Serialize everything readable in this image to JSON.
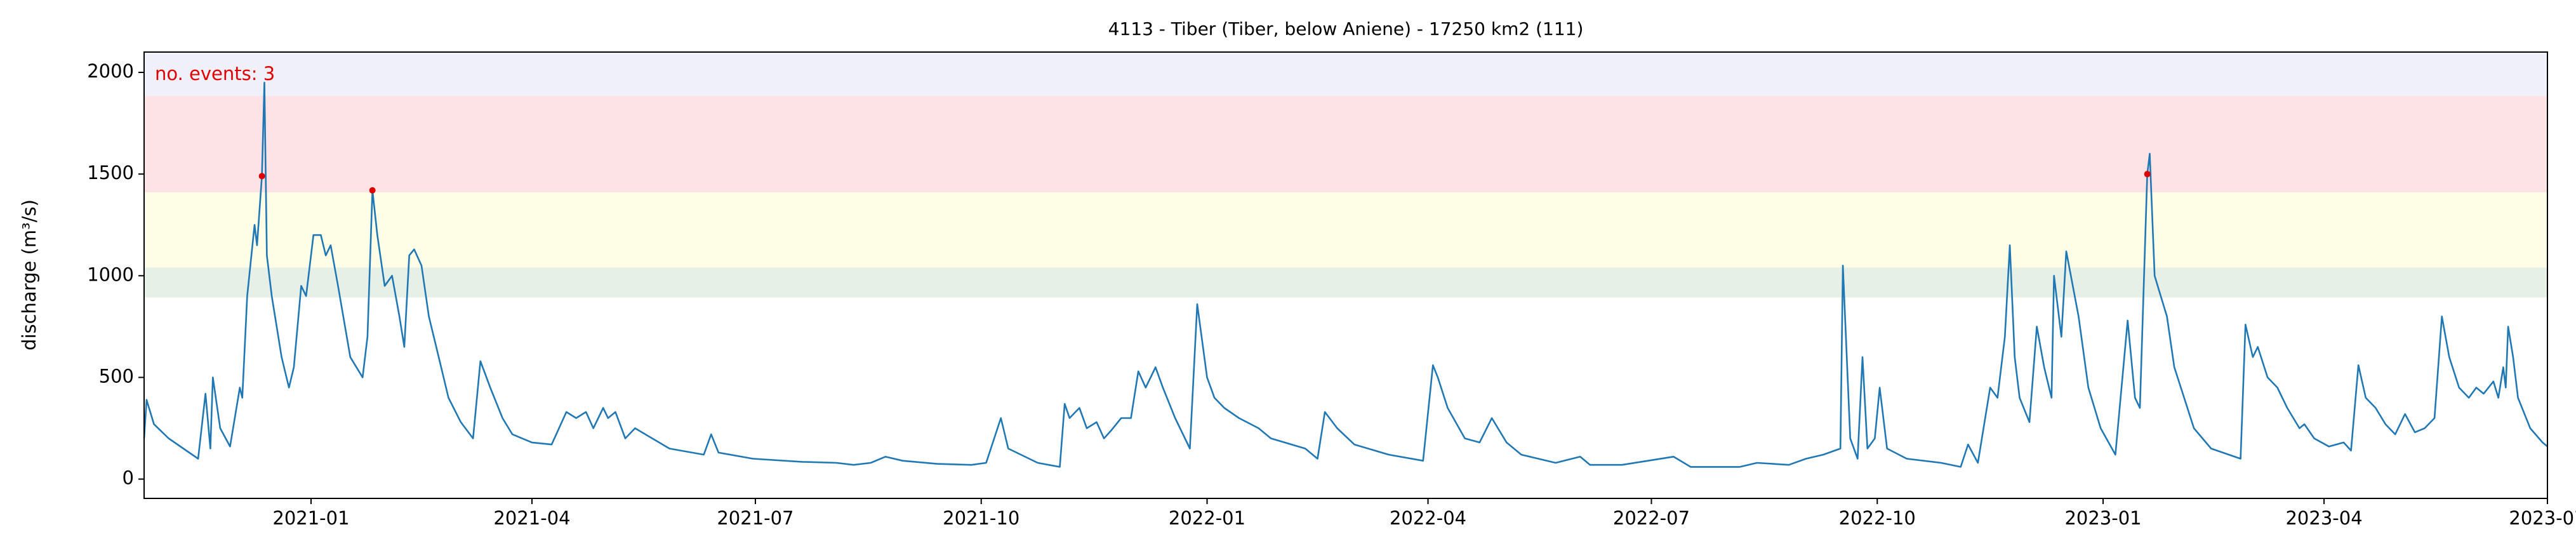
{
  "chart_data": {
    "type": "line",
    "title": "4113 - Tiber (Tiber, below Aniene) - 17250 km2 (111)",
    "ylabel": "discharge (m³/s)",
    "annotation": "no. events: 3",
    "annotation_color": "#e00000",
    "xlim": [
      "2020-10-25",
      "2023-07-01"
    ],
    "xticks": [
      {
        "value": "2021-01-01",
        "label": "2021-01"
      },
      {
        "value": "2021-04-01",
        "label": "2021-04"
      },
      {
        "value": "2021-07-01",
        "label": "2021-07"
      },
      {
        "value": "2021-10-01",
        "label": "2021-10"
      },
      {
        "value": "2022-01-01",
        "label": "2022-01"
      },
      {
        "value": "2022-04-01",
        "label": "2022-04"
      },
      {
        "value": "2022-07-01",
        "label": "2022-07"
      },
      {
        "value": "2022-10-01",
        "label": "2022-10"
      },
      {
        "value": "2023-01-01",
        "label": "2023-01"
      },
      {
        "value": "2023-04-01",
        "label": "2023-04"
      },
      {
        "value": "2023-07-01",
        "label": "2023-07"
      }
    ],
    "ylim": [
      -95,
      2100
    ],
    "yticks": [
      0,
      500,
      1000,
      1500,
      2000
    ],
    "bands": [
      {
        "from": 893,
        "to": 1041,
        "color": "#e6f0e6"
      },
      {
        "from": 1041,
        "to": 1410,
        "color": "#fefee6"
      },
      {
        "from": 1410,
        "to": 1885,
        "color": "#fde3e5"
      },
      {
        "from": 1885,
        "to": 2100,
        "color": "#f0f0fa"
      }
    ],
    "series": [
      {
        "color": "#1f77b4",
        "x": [
          "2020-10-25",
          "2020-10-26",
          "2020-10-29",
          "2020-11-04",
          "2020-11-16",
          "2020-11-19",
          "2020-11-21",
          "2020-11-22",
          "2020-11-25",
          "2020-11-29",
          "2020-12-03",
          "2020-12-04",
          "2020-12-06",
          "2020-12-09",
          "2020-12-10",
          "2020-12-12",
          "2020-12-13",
          "2020-12-14",
          "2020-12-16",
          "2020-12-20",
          "2020-12-23",
          "2020-12-25",
          "2020-12-28",
          "2020-12-30",
          "2021-01-02",
          "2021-01-05",
          "2021-01-07",
          "2021-01-09",
          "2021-01-12",
          "2021-01-17",
          "2021-01-22",
          "2021-01-24",
          "2021-01-26",
          "2021-01-28",
          "2021-01-31",
          "2021-02-03",
          "2021-02-06",
          "2021-02-08",
          "2021-02-10",
          "2021-02-12",
          "2021-02-15",
          "2021-02-18",
          "2021-02-22",
          "2021-02-26",
          "2021-03-03",
          "2021-03-08",
          "2021-03-11",
          "2021-03-15",
          "2021-03-20",
          "2021-03-24",
          "2021-04-01",
          "2021-04-09",
          "2021-04-15",
          "2021-04-19",
          "2021-04-23",
          "2021-04-26",
          "2021-04-30",
          "2021-05-02",
          "2021-05-05",
          "2021-05-09",
          "2021-05-13",
          "2021-05-20",
          "2021-05-27",
          "2021-06-10",
          "2021-06-13",
          "2021-06-16",
          "2021-06-30",
          "2021-07-20",
          "2021-08-03",
          "2021-08-10",
          "2021-08-17",
          "2021-08-23",
          "2021-08-30",
          "2021-09-13",
          "2021-09-27",
          "2021-10-03",
          "2021-10-09",
          "2021-10-12",
          "2021-10-24",
          "2021-11-02",
          "2021-11-04",
          "2021-11-06",
          "2021-11-10",
          "2021-11-13",
          "2021-11-17",
          "2021-11-20",
          "2021-11-23",
          "2021-11-27",
          "2021-12-01",
          "2021-12-04",
          "2021-12-07",
          "2021-12-11",
          "2021-12-14",
          "2021-12-19",
          "2021-12-23",
          "2021-12-25",
          "2021-12-28",
          "2022-01-01",
          "2022-01-04",
          "2022-01-08",
          "2022-01-14",
          "2022-01-22",
          "2022-01-27",
          "2022-02-10",
          "2022-02-15",
          "2022-02-18",
          "2022-02-23",
          "2022-03-02",
          "2022-03-16",
          "2022-03-30",
          "2022-04-03",
          "2022-04-05",
          "2022-04-09",
          "2022-04-16",
          "2022-04-22",
          "2022-04-27",
          "2022-05-03",
          "2022-05-09",
          "2022-05-23",
          "2022-06-02",
          "2022-06-06",
          "2022-06-19",
          "2022-07-10",
          "2022-07-17",
          "2022-08-06",
          "2022-08-13",
          "2022-08-26",
          "2022-09-02",
          "2022-09-09",
          "2022-09-16",
          "2022-09-17",
          "2022-09-20",
          "2022-09-23",
          "2022-09-25",
          "2022-09-27",
          "2022-09-30",
          "2022-10-02",
          "2022-10-05",
          "2022-10-13",
          "2022-10-27",
          "2022-11-04",
          "2022-11-07",
          "2022-11-11",
          "2022-11-16",
          "2022-11-19",
          "2022-11-22",
          "2022-11-24",
          "2022-11-26",
          "2022-11-28",
          "2022-12-02",
          "2022-12-05",
          "2022-12-08",
          "2022-12-11",
          "2022-12-12",
          "2022-12-15",
          "2022-12-17",
          "2022-12-22",
          "2022-12-26",
          "2022-12-31",
          "2023-01-06",
          "2023-01-11",
          "2023-01-14",
          "2023-01-16",
          "2023-01-19",
          "2023-01-20",
          "2023-01-22",
          "2023-01-25",
          "2023-01-27",
          "2023-01-30",
          "2023-02-03",
          "2023-02-07",
          "2023-02-14",
          "2023-02-26",
          "2023-02-28",
          "2023-03-03",
          "2023-03-05",
          "2023-03-09",
          "2023-03-13",
          "2023-03-17",
          "2023-03-22",
          "2023-03-24",
          "2023-03-28",
          "2023-04-03",
          "2023-04-09",
          "2023-04-12",
          "2023-04-15",
          "2023-04-18",
          "2023-04-22",
          "2023-04-26",
          "2023-04-30",
          "2023-05-04",
          "2023-05-08",
          "2023-05-12",
          "2023-05-16",
          "2023-05-19",
          "2023-05-22",
          "2023-05-26",
          "2023-05-30",
          "2023-06-02",
          "2023-06-05",
          "2023-06-09",
          "2023-06-11",
          "2023-06-13",
          "2023-06-14",
          "2023-06-15",
          "2023-06-17",
          "2023-06-19",
          "2023-06-24",
          "2023-06-29",
          "2023-07-01"
        ],
        "values": [
          200,
          390,
          270,
          200,
          100,
          420,
          150,
          500,
          250,
          160,
          450,
          400,
          900,
          1250,
          1150,
          1490,
          1950,
          1100,
          900,
          600,
          450,
          550,
          950,
          900,
          1200,
          1200,
          1100,
          1150,
          950,
          600,
          500,
          700,
          1420,
          1200,
          950,
          1000,
          800,
          650,
          1100,
          1130,
          1050,
          800,
          600,
          400,
          280,
          200,
          580,
          450,
          300,
          220,
          180,
          170,
          330,
          300,
          330,
          250,
          350,
          300,
          330,
          200,
          250,
          200,
          150,
          120,
          220,
          130,
          100,
          85,
          80,
          70,
          80,
          110,
          90,
          75,
          70,
          80,
          300,
          150,
          80,
          60,
          370,
          300,
          350,
          250,
          280,
          200,
          240,
          300,
          300,
          530,
          450,
          550,
          450,
          300,
          200,
          150,
          860,
          500,
          400,
          350,
          300,
          250,
          200,
          150,
          100,
          330,
          250,
          170,
          120,
          90,
          560,
          500,
          350,
          200,
          180,
          300,
          180,
          120,
          80,
          110,
          70,
          70,
          110,
          60,
          60,
          80,
          70,
          100,
          120,
          150,
          1050,
          200,
          100,
          600,
          150,
          200,
          450,
          150,
          100,
          80,
          60,
          170,
          80,
          450,
          400,
          700,
          1150,
          600,
          400,
          280,
          750,
          550,
          400,
          1000,
          700,
          1120,
          800,
          450,
          250,
          120,
          780,
          400,
          350,
          1500,
          1600,
          1000,
          880,
          800,
          550,
          400,
          250,
          150,
          100,
          760,
          600,
          650,
          500,
          450,
          350,
          250,
          270,
          200,
          160,
          180,
          140,
          560,
          400,
          350,
          270,
          220,
          320,
          230,
          250,
          300,
          800,
          600,
          450,
          400,
          450,
          420,
          480,
          400,
          550,
          450,
          750,
          600,
          400,
          250,
          180,
          160
        ]
      }
    ],
    "events": {
      "color": "#e00000",
      "x": [
        "2020-12-12",
        "2021-01-26",
        "2023-01-19"
      ],
      "values": [
        1490,
        1420,
        1500
      ]
    }
  }
}
